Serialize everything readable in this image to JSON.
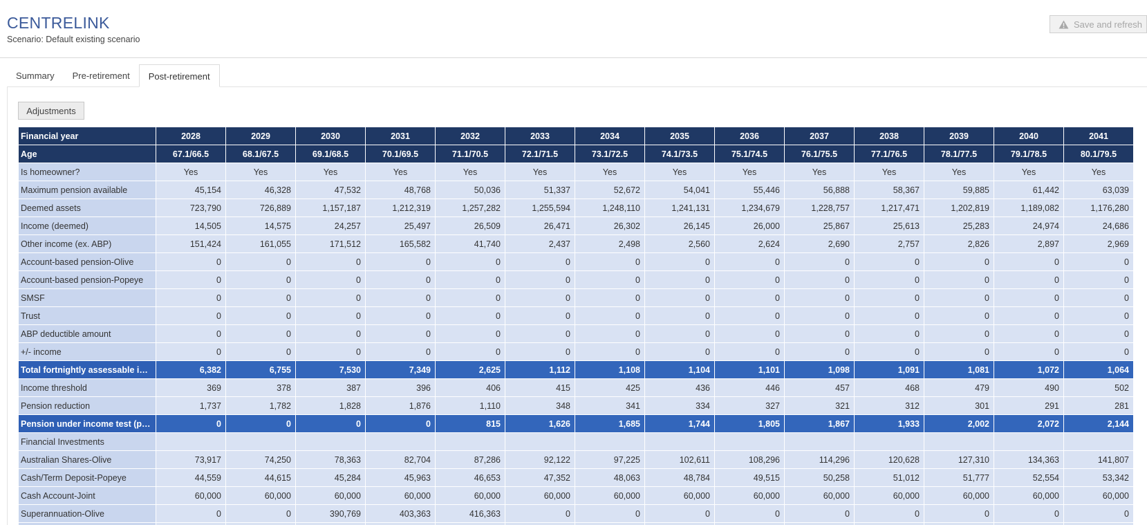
{
  "header": {
    "title": "CENTRELINK",
    "subtitle": "Scenario: Default existing scenario",
    "save_label": "Save and refresh",
    "save_icon": "warning-icon"
  },
  "tabs": [
    {
      "label": "Summary",
      "active": false
    },
    {
      "label": "Pre-retirement",
      "active": false
    },
    {
      "label": "Post-retirement",
      "active": true
    }
  ],
  "adjustments_label": "Adjustments",
  "table": {
    "header_label": "Financial year",
    "years": [
      "2028",
      "2029",
      "2030",
      "2031",
      "2032",
      "2033",
      "2034",
      "2035",
      "2036",
      "2037",
      "2038",
      "2039",
      "2040",
      "2041"
    ],
    "rows": [
      {
        "label": "Age",
        "style": "dark",
        "align": "center",
        "values": [
          "67.1/66.5",
          "68.1/67.5",
          "69.1/68.5",
          "70.1/69.5",
          "71.1/70.5",
          "72.1/71.5",
          "73.1/72.5",
          "74.1/73.5",
          "75.1/74.5",
          "76.1/75.5",
          "77.1/76.5",
          "78.1/77.5",
          "79.1/78.5",
          "80.1/79.5"
        ]
      },
      {
        "label": "Is homeowner?",
        "style": "normal",
        "align": "center",
        "values": [
          "Yes",
          "Yes",
          "Yes",
          "Yes",
          "Yes",
          "Yes",
          "Yes",
          "Yes",
          "Yes",
          "Yes",
          "Yes",
          "Yes",
          "Yes",
          "Yes"
        ]
      },
      {
        "label": "Maximum pension available",
        "style": "normal",
        "align": "num",
        "values": [
          "45,154",
          "46,328",
          "47,532",
          "48,768",
          "50,036",
          "51,337",
          "52,672",
          "54,041",
          "55,446",
          "56,888",
          "58,367",
          "59,885",
          "61,442",
          "63,039"
        ]
      },
      {
        "label": "Deemed assets",
        "style": "normal",
        "align": "num",
        "values": [
          "723,790",
          "726,889",
          "1,157,187",
          "1,212,319",
          "1,257,282",
          "1,255,594",
          "1,248,110",
          "1,241,131",
          "1,234,679",
          "1,228,757",
          "1,217,471",
          "1,202,819",
          "1,189,082",
          "1,176,280"
        ]
      },
      {
        "label": "Income (deemed)",
        "style": "normal",
        "align": "num",
        "values": [
          "14,505",
          "14,575",
          "24,257",
          "25,497",
          "26,509",
          "26,471",
          "26,302",
          "26,145",
          "26,000",
          "25,867",
          "25,613",
          "25,283",
          "24,974",
          "24,686"
        ]
      },
      {
        "label": "Other income (ex. ABP)",
        "style": "normal",
        "align": "num",
        "values": [
          "151,424",
          "161,055",
          "171,512",
          "165,582",
          "41,740",
          "2,437",
          "2,498",
          "2,560",
          "2,624",
          "2,690",
          "2,757",
          "2,826",
          "2,897",
          "2,969"
        ]
      },
      {
        "label": "Account-based pension-Olive",
        "style": "normal",
        "align": "num",
        "values": [
          "0",
          "0",
          "0",
          "0",
          "0",
          "0",
          "0",
          "0",
          "0",
          "0",
          "0",
          "0",
          "0",
          "0"
        ]
      },
      {
        "label": "Account-based pension-Popeye",
        "style": "normal",
        "align": "num",
        "values": [
          "0",
          "0",
          "0",
          "0",
          "0",
          "0",
          "0",
          "0",
          "0",
          "0",
          "0",
          "0",
          "0",
          "0"
        ]
      },
      {
        "label": "SMSF",
        "style": "normal",
        "align": "num",
        "values": [
          "0",
          "0",
          "0",
          "0",
          "0",
          "0",
          "0",
          "0",
          "0",
          "0",
          "0",
          "0",
          "0",
          "0"
        ]
      },
      {
        "label": "Trust",
        "style": "normal",
        "align": "num",
        "values": [
          "0",
          "0",
          "0",
          "0",
          "0",
          "0",
          "0",
          "0",
          "0",
          "0",
          "0",
          "0",
          "0",
          "0"
        ]
      },
      {
        "label": "ABP deductible amount",
        "style": "normal",
        "align": "num",
        "values": [
          "0",
          "0",
          "0",
          "0",
          "0",
          "0",
          "0",
          "0",
          "0",
          "0",
          "0",
          "0",
          "0",
          "0"
        ]
      },
      {
        "label": "+/- income",
        "style": "normal",
        "align": "num",
        "values": [
          "0",
          "0",
          "0",
          "0",
          "0",
          "0",
          "0",
          "0",
          "0",
          "0",
          "0",
          "0",
          "0",
          "0"
        ]
      },
      {
        "label": "Total fortnightly assessable inc...",
        "style": "highlight",
        "align": "num",
        "values": [
          "6,382",
          "6,755",
          "7,530",
          "7,349",
          "2,625",
          "1,112",
          "1,108",
          "1,104",
          "1,101",
          "1,098",
          "1,091",
          "1,081",
          "1,072",
          "1,064"
        ]
      },
      {
        "label": "Income threshold",
        "style": "normal",
        "align": "num",
        "values": [
          "369",
          "378",
          "387",
          "396",
          "406",
          "415",
          "425",
          "436",
          "446",
          "457",
          "468",
          "479",
          "490",
          "502"
        ]
      },
      {
        "label": "Pension reduction",
        "style": "normal",
        "align": "num",
        "values": [
          "1,737",
          "1,782",
          "1,828",
          "1,876",
          "1,110",
          "348",
          "341",
          "334",
          "327",
          "321",
          "312",
          "301",
          "291",
          "281"
        ]
      },
      {
        "label": "Pension under income test (p.f.)",
        "style": "highlight",
        "align": "num",
        "values": [
          "0",
          "0",
          "0",
          "0",
          "815",
          "1,626",
          "1,685",
          "1,744",
          "1,805",
          "1,867",
          "1,933",
          "2,002",
          "2,072",
          "2,144"
        ]
      },
      {
        "label": "Financial Investments",
        "style": "section",
        "align": "num",
        "values": [
          "",
          "",
          "",
          "",
          "",
          "",
          "",
          "",
          "",
          "",
          "",
          "",
          "",
          ""
        ]
      },
      {
        "label": "Australian Shares-Olive",
        "style": "normal",
        "align": "num",
        "values": [
          "73,917",
          "74,250",
          "78,363",
          "82,704",
          "87,286",
          "92,122",
          "97,225",
          "102,611",
          "108,296",
          "114,296",
          "120,628",
          "127,310",
          "134,363",
          "141,807"
        ]
      },
      {
        "label": "Cash/Term Deposit-Popeye",
        "style": "normal",
        "align": "num",
        "values": [
          "44,559",
          "44,615",
          "45,284",
          "45,963",
          "46,653",
          "47,352",
          "48,063",
          "48,784",
          "49,515",
          "50,258",
          "51,012",
          "51,777",
          "52,554",
          "53,342"
        ]
      },
      {
        "label": "Cash Account-Joint",
        "style": "normal",
        "align": "num",
        "values": [
          "60,000",
          "60,000",
          "60,000",
          "60,000",
          "60,000",
          "60,000",
          "60,000",
          "60,000",
          "60,000",
          "60,000",
          "60,000",
          "60,000",
          "60,000",
          "60,000"
        ]
      },
      {
        "label": "Superannuation-Olive",
        "style": "normal",
        "align": "num",
        "values": [
          "0",
          "0",
          "390,769",
          "403,363",
          "416,363",
          "0",
          "0",
          "0",
          "0",
          "0",
          "0",
          "0",
          "0",
          "0"
        ]
      }
    ]
  }
}
